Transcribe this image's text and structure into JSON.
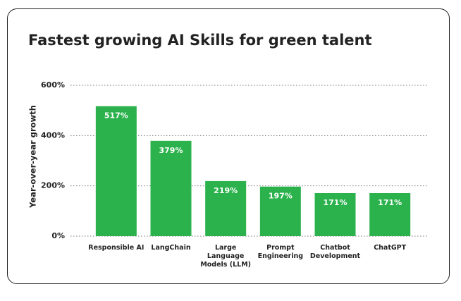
{
  "chart_data": {
    "type": "bar",
    "title": "Fastest growing AI Skills for green talent",
    "y_label": "Year-over-year growth",
    "categories": [
      "Responsible AI",
      "LangChain",
      "Large Language Models (LLM)",
      "Prompt Engineering",
      "Chatbot Development",
      "ChatGPT"
    ],
    "values": [
      517,
      379,
      219,
      197,
      171,
      171
    ],
    "value_labels": [
      "517%",
      "379%",
      "219%",
      "197%",
      "171%",
      "171%"
    ],
    "color": "#2bb24c",
    "ylim": [
      0,
      600
    ],
    "yticks": [
      {
        "value": 0,
        "label": "0%"
      },
      {
        "value": 200,
        "label": "200%"
      },
      {
        "value": 400,
        "label": "400%"
      },
      {
        "value": 600,
        "label": "600%"
      }
    ],
    "grid": true
  }
}
